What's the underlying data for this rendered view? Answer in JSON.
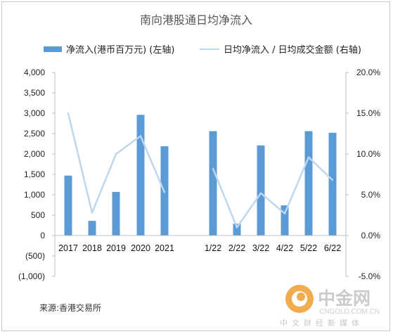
{
  "chart_data": {
    "type": "bar+line",
    "title": "南向港股通日均净流入",
    "categories": [
      "2017",
      "2018",
      "2019",
      "2020",
      "2021",
      "1/22",
      "2/22",
      "3/22",
      "4/22",
      "5/22",
      "6/22"
    ],
    "series": [
      {
        "name": "净流入(港币百万元) (左轴)",
        "type": "bar",
        "axis": "left",
        "color": "#5b9bd5",
        "values": [
          1470,
          360,
          1070,
          2960,
          2190,
          2560,
          290,
          2210,
          740,
          2560,
          2520
        ]
      },
      {
        "name": "日均净流入 / 日均成交金额 (右轴)",
        "type": "line",
        "axis": "right",
        "color": "#bdd7ee",
        "values": [
          15.0,
          2.8,
          10.0,
          12.2,
          5.3,
          8.2,
          1.0,
          5.2,
          2.7,
          9.6,
          6.8
        ]
      }
    ],
    "left_axis": {
      "min": -1000,
      "max": 4000,
      "step": 500,
      "tick_labels": [
        "(1,000)",
        "(500)",
        "0",
        "500",
        "1,000",
        "1,500",
        "2,000",
        "2,500",
        "3,000",
        "3,500",
        "4,000"
      ]
    },
    "right_axis": {
      "min": -5,
      "max": 20,
      "step": 5,
      "tick_labels": [
        "-5.0%",
        "0.0%",
        "5.0%",
        "10.0%",
        "15.0%",
        "20.0%"
      ]
    },
    "grid": false,
    "legend_position": "top"
  },
  "source": "来源:香港交易所",
  "watermark": {
    "brand": "中金网",
    "domain": "CNGOLD.COM.CN",
    "tagline": "中文财经新媒体",
    "logo_color": "#f0a43c"
  }
}
